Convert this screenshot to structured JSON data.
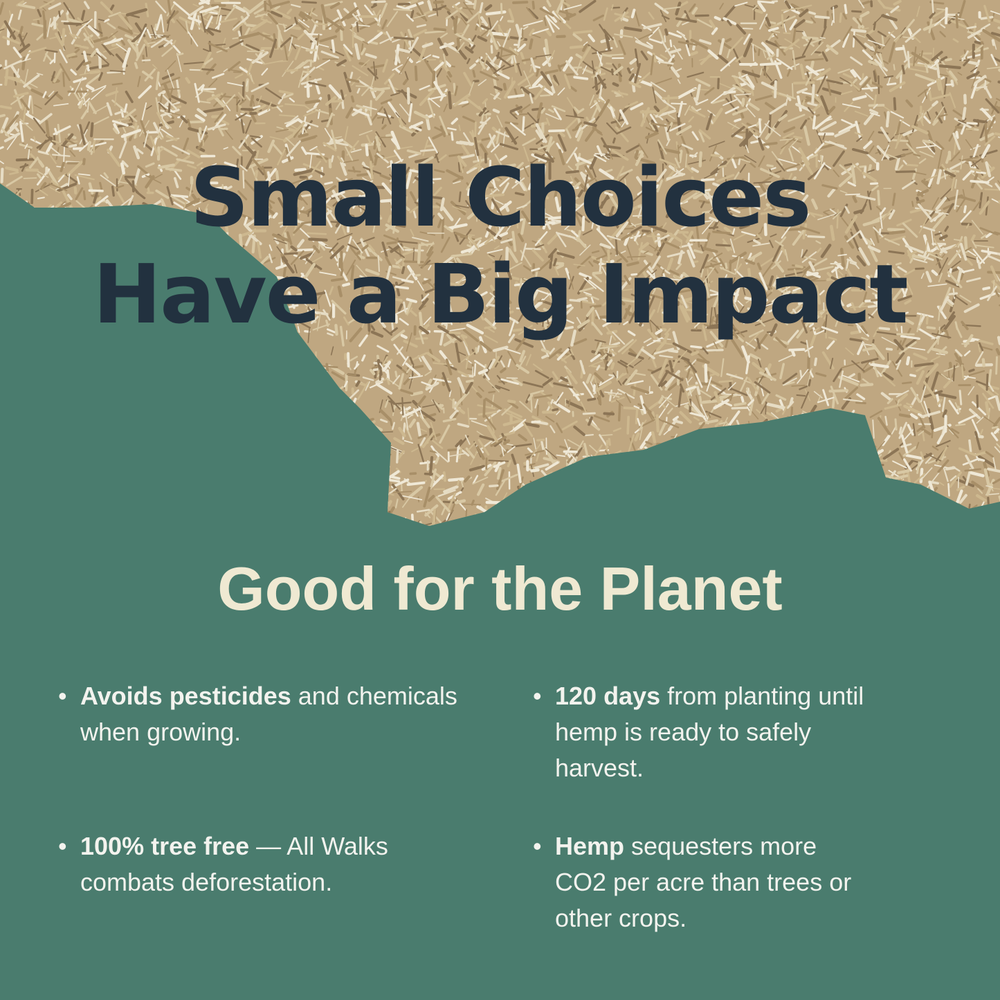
{
  "headline": {
    "line1": "Small Choices",
    "line2": "Have a Big Impact"
  },
  "subheading": "Good for the Planet",
  "bullets": [
    {
      "bold": "Avoids pesticides",
      "rest": " and chemicals when growing."
    },
    {
      "bold": "120 days",
      "rest": " from planting until hemp is ready to safely harvest."
    },
    {
      "bold": "100% tree free",
      "rest": " — All Walks combats deforestation."
    },
    {
      "bold": "Hemp",
      "rest": " sequesters more CO2 per acre than trees or other crops."
    }
  ],
  "colors": {
    "background": "#4a7c6e",
    "headline": "#22313f",
    "subheading": "#efe9d2",
    "body_text": "#f3f3ee",
    "hemp": "#c9b491"
  },
  "bullet_icon": "•",
  "image": "hemp-shavings-photo"
}
